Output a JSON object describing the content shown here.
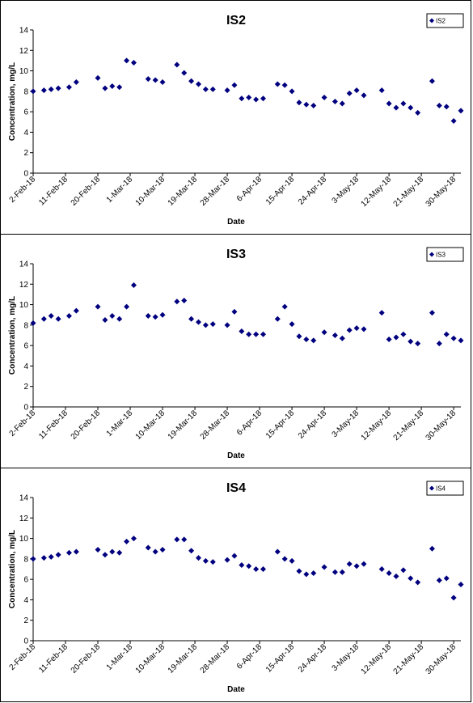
{
  "chart_data": [
    {
      "type": "scatter",
      "title": "IS2",
      "xlabel": "Date",
      "ylabel": "Concentration, mg/L",
      "ylim": [
        0,
        14
      ],
      "yticks": [
        "0",
        "2",
        "4",
        "6",
        "8",
        "10",
        "12",
        "14"
      ],
      "xlim": [
        "2018-02-02",
        "2018-06-01"
      ],
      "xticks": [
        "2-Feb-18",
        "11-Feb-18",
        "20-Feb-18",
        "1-Mar-18",
        "10-Mar-18",
        "19-Mar-18",
        "28-Mar-18",
        "6-Apr-18",
        "15-Apr-18",
        "24-Apr-18",
        "3-May-18",
        "12-May-18",
        "21-May-18",
        "30-May-18"
      ],
      "legend": "top-right",
      "grid": false,
      "marker_color": "#00007f",
      "series": [
        {
          "name": "IS2",
          "x": [
            "2018-02-02",
            "2018-02-05",
            "2018-02-07",
            "2018-02-09",
            "2018-02-12",
            "2018-02-14",
            "2018-02-20",
            "2018-02-22",
            "2018-02-24",
            "2018-02-26",
            "2018-02-28",
            "2018-03-02",
            "2018-03-06",
            "2018-03-08",
            "2018-03-10",
            "2018-03-14",
            "2018-03-16",
            "2018-03-18",
            "2018-03-20",
            "2018-03-22",
            "2018-03-24",
            "2018-03-28",
            "2018-03-30",
            "2018-04-01",
            "2018-04-03",
            "2018-04-05",
            "2018-04-07",
            "2018-04-11",
            "2018-04-13",
            "2018-04-15",
            "2018-04-17",
            "2018-04-19",
            "2018-04-21",
            "2018-04-24",
            "2018-04-27",
            "2018-04-29",
            "2018-05-01",
            "2018-05-03",
            "2018-05-05",
            "2018-05-10",
            "2018-05-12",
            "2018-05-14",
            "2018-05-16",
            "2018-05-18",
            "2018-05-20",
            "2018-05-24",
            "2018-05-26",
            "2018-05-28",
            "2018-05-30",
            "2018-06-01"
          ],
          "y": [
            8.0,
            8.1,
            8.2,
            8.3,
            8.4,
            8.9,
            9.3,
            8.3,
            8.5,
            8.4,
            11.0,
            10.8,
            9.2,
            9.1,
            8.9,
            10.6,
            9.8,
            9.0,
            8.7,
            8.2,
            8.2,
            8.1,
            8.6,
            7.3,
            7.4,
            7.2,
            7.3,
            8.7,
            8.6,
            8.0,
            6.9,
            6.7,
            6.6,
            7.4,
            7.0,
            6.8,
            7.8,
            8.1,
            7.6,
            8.1,
            6.8,
            6.4,
            6.8,
            6.4,
            5.9,
            9.0,
            6.6,
            6.5,
            5.1,
            6.1
          ]
        }
      ]
    },
    {
      "type": "scatter",
      "title": "IS3",
      "xlabel": "Date",
      "ylabel": "Concentration, mg/L",
      "ylim": [
        0,
        14
      ],
      "yticks": [
        "0",
        "2",
        "4",
        "6",
        "8",
        "10",
        "12",
        "14"
      ],
      "xlim": [
        "2018-02-02",
        "2018-06-01"
      ],
      "xticks": [
        "2-Feb-18",
        "11-Feb-18",
        "20-Feb-18",
        "1-Mar-18",
        "10-Mar-18",
        "19-Mar-18",
        "28-Mar-18",
        "6-Apr-18",
        "15-Apr-18",
        "24-Apr-18",
        "3-May-18",
        "12-May-18",
        "21-May-18",
        "30-May-18"
      ],
      "legend": "top-right",
      "grid": false,
      "marker_color": "#00007f",
      "series": [
        {
          "name": "IS3",
          "x": [
            "2018-02-02",
            "2018-02-05",
            "2018-02-07",
            "2018-02-09",
            "2018-02-12",
            "2018-02-14",
            "2018-02-20",
            "2018-02-22",
            "2018-02-24",
            "2018-02-26",
            "2018-02-28",
            "2018-03-02",
            "2018-03-06",
            "2018-03-08",
            "2018-03-10",
            "2018-03-14",
            "2018-03-16",
            "2018-03-18",
            "2018-03-20",
            "2018-03-22",
            "2018-03-24",
            "2018-03-28",
            "2018-03-30",
            "2018-04-01",
            "2018-04-03",
            "2018-04-05",
            "2018-04-07",
            "2018-04-11",
            "2018-04-13",
            "2018-04-15",
            "2018-04-17",
            "2018-04-19",
            "2018-04-21",
            "2018-04-24",
            "2018-04-27",
            "2018-04-29",
            "2018-05-01",
            "2018-05-03",
            "2018-05-05",
            "2018-05-10",
            "2018-05-12",
            "2018-05-14",
            "2018-05-16",
            "2018-05-18",
            "2018-05-20",
            "2018-05-24",
            "2018-05-26",
            "2018-05-28",
            "2018-05-30",
            "2018-06-01"
          ],
          "y": [
            8.2,
            8.6,
            8.9,
            8.6,
            8.9,
            9.4,
            9.8,
            8.5,
            8.9,
            8.6,
            9.8,
            11.9,
            8.9,
            8.8,
            9.0,
            10.3,
            10.4,
            8.6,
            8.3,
            8.0,
            8.1,
            8.0,
            9.3,
            7.4,
            7.1,
            7.1,
            7.1,
            8.6,
            9.8,
            8.1,
            6.9,
            6.6,
            6.5,
            7.3,
            7.0,
            6.7,
            7.5,
            7.7,
            7.6,
            9.2,
            6.6,
            6.8,
            7.1,
            6.4,
            6.2,
            9.2,
            6.2,
            7.1,
            6.7,
            6.5
          ]
        }
      ]
    },
    {
      "type": "scatter",
      "title": "IS4",
      "xlabel": "Date",
      "ylabel": "Concentration, mg/L",
      "ylim": [
        0,
        14
      ],
      "yticks": [
        "0",
        "2",
        "4",
        "6",
        "8",
        "10",
        "12",
        "14"
      ],
      "xlim": [
        "2018-02-02",
        "2018-06-01"
      ],
      "xticks": [
        "2-Feb-18",
        "11-Feb-18",
        "20-Feb-18",
        "1-Mar-18",
        "10-Mar-18",
        "19-Mar-18",
        "28-Mar-18",
        "6-Apr-18",
        "15-Apr-18",
        "24-Apr-18",
        "3-May-18",
        "12-May-18",
        "21-May-18",
        "30-May-18"
      ],
      "legend": "top-right",
      "grid": false,
      "marker_color": "#00007f",
      "series": [
        {
          "name": "IS4",
          "x": [
            "2018-02-02",
            "2018-02-05",
            "2018-02-07",
            "2018-02-09",
            "2018-02-12",
            "2018-02-14",
            "2018-02-20",
            "2018-02-22",
            "2018-02-24",
            "2018-02-26",
            "2018-02-28",
            "2018-03-02",
            "2018-03-06",
            "2018-03-08",
            "2018-03-10",
            "2018-03-14",
            "2018-03-16",
            "2018-03-18",
            "2018-03-20",
            "2018-03-22",
            "2018-03-24",
            "2018-03-28",
            "2018-03-30",
            "2018-04-01",
            "2018-04-03",
            "2018-04-05",
            "2018-04-07",
            "2018-04-11",
            "2018-04-13",
            "2018-04-15",
            "2018-04-17",
            "2018-04-19",
            "2018-04-21",
            "2018-04-24",
            "2018-04-27",
            "2018-04-29",
            "2018-05-01",
            "2018-05-03",
            "2018-05-05",
            "2018-05-10",
            "2018-05-12",
            "2018-05-14",
            "2018-05-16",
            "2018-05-18",
            "2018-05-20",
            "2018-05-24",
            "2018-05-26",
            "2018-05-28",
            "2018-05-30",
            "2018-06-01"
          ],
          "y": [
            8.0,
            8.1,
            8.2,
            8.4,
            8.6,
            8.7,
            8.9,
            8.4,
            8.7,
            8.6,
            9.7,
            10.0,
            9.1,
            8.7,
            8.9,
            9.9,
            9.9,
            8.8,
            8.1,
            7.8,
            7.7,
            7.9,
            8.3,
            7.4,
            7.3,
            7.0,
            7.0,
            8.7,
            8.0,
            7.8,
            6.8,
            6.5,
            6.6,
            7.2,
            6.7,
            6.7,
            7.5,
            7.3,
            7.5,
            7.0,
            6.6,
            6.3,
            6.9,
            6.1,
            5.7,
            9.0,
            5.9,
            6.1,
            4.2,
            5.5
          ]
        }
      ]
    }
  ]
}
